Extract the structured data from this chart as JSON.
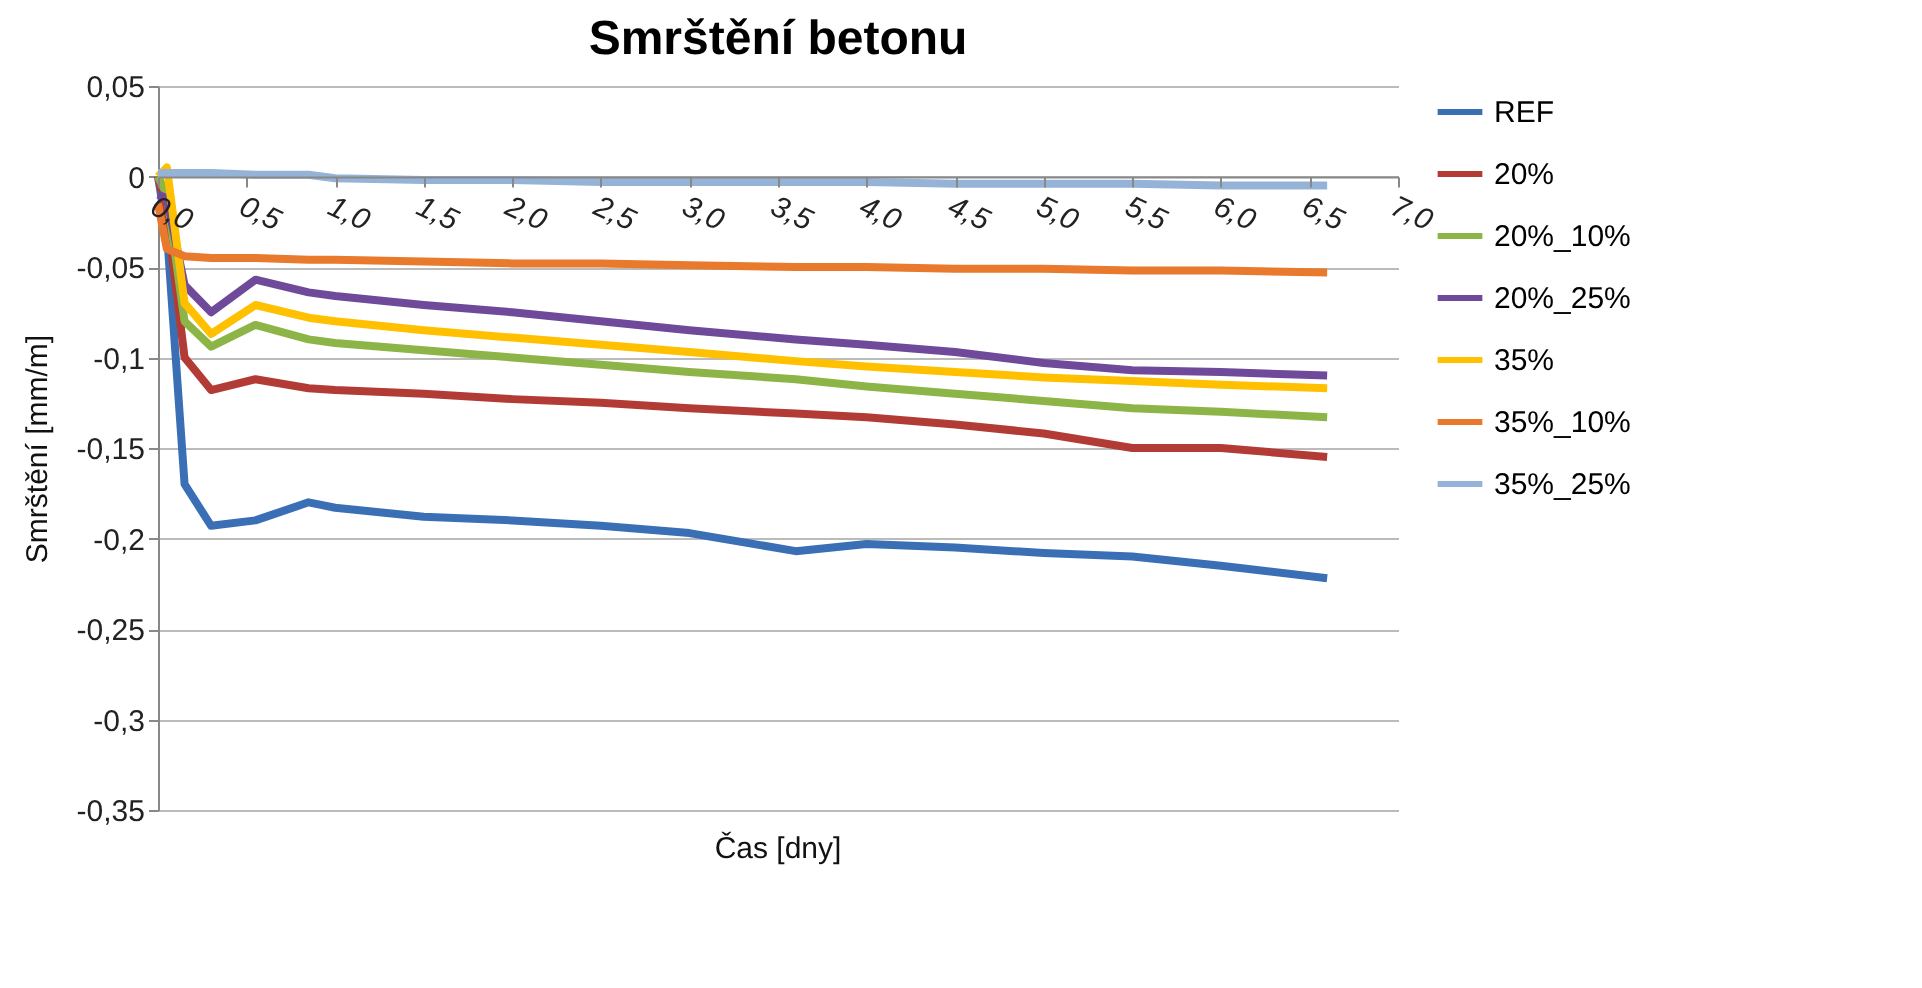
{
  "chart_data": {
    "type": "line",
    "title": "Smrštění betonu",
    "xlabel": "Čas [dny]",
    "ylabel": "Smrštění [mm/m]",
    "x": [
      0,
      0.05,
      0.15,
      0.3,
      0.55,
      0.85,
      1.0,
      1.5,
      2.0,
      2.5,
      3.0,
      3.6,
      4.0,
      4.5,
      5.0,
      5.5,
      6.0,
      6.6
    ],
    "series": [
      {
        "name": "REF",
        "color": "#3a6fb5",
        "values": [
          0,
          -0.03,
          -0.17,
          -0.193,
          -0.19,
          -0.18,
          -0.183,
          -0.188,
          -0.19,
          -0.193,
          -0.197,
          -0.207,
          -0.203,
          -0.205,
          -0.208,
          -0.21,
          -0.215,
          -0.222
        ]
      },
      {
        "name": "20%",
        "color": "#b23b36",
        "values": [
          0,
          -0.02,
          -0.1,
          -0.118,
          -0.112,
          -0.117,
          -0.118,
          -0.12,
          -0.123,
          -0.125,
          -0.128,
          -0.131,
          -0.133,
          -0.137,
          -0.142,
          -0.15,
          -0.15,
          -0.155
        ]
      },
      {
        "name": "20%_10%",
        "color": "#8db446",
        "values": [
          0,
          -0.01,
          -0.08,
          -0.094,
          -0.082,
          -0.09,
          -0.092,
          -0.096,
          -0.1,
          -0.104,
          -0.108,
          -0.112,
          -0.116,
          -0.12,
          -0.124,
          -0.128,
          -0.13,
          -0.133
        ]
      },
      {
        "name": "20%_25%",
        "color": "#6f4a9a",
        "values": [
          -0.01,
          -0.012,
          -0.06,
          -0.075,
          -0.057,
          -0.064,
          -0.066,
          -0.071,
          -0.075,
          -0.08,
          -0.085,
          -0.09,
          -0.093,
          -0.097,
          -0.103,
          -0.107,
          -0.108,
          -0.11
        ]
      },
      {
        "name": "35%",
        "color": "#ffc000",
        "values": [
          0,
          0.005,
          -0.07,
          -0.087,
          -0.071,
          -0.078,
          -0.08,
          -0.085,
          -0.089,
          -0.093,
          -0.097,
          -0.102,
          -0.105,
          -0.108,
          -0.111,
          -0.113,
          -0.115,
          -0.117
        ]
      },
      {
        "name": "35%_10%",
        "color": "#e8792d",
        "values": [
          -0.015,
          -0.04,
          -0.044,
          -0.045,
          -0.045,
          -0.046,
          -0.046,
          -0.047,
          -0.048,
          -0.048,
          -0.049,
          -0.05,
          -0.05,
          -0.051,
          -0.051,
          -0.052,
          -0.052,
          -0.053
        ]
      },
      {
        "name": "35%_25%",
        "color": "#95b3d7",
        "values": [
          0.002,
          0.002,
          0.002,
          0.002,
          0.001,
          0.001,
          -0.001,
          -0.002,
          -0.002,
          -0.003,
          -0.003,
          -0.003,
          -0.003,
          -0.004,
          -0.004,
          -0.004,
          -0.005,
          -0.005
        ]
      }
    ],
    "xlim": [
      0,
      7.0
    ],
    "xticks": [
      {
        "value": 0,
        "label": "0,0"
      },
      {
        "value": 0.5,
        "label": "0,5"
      },
      {
        "value": 1.0,
        "label": "1,0"
      },
      {
        "value": 1.5,
        "label": "1,5"
      },
      {
        "value": 2.0,
        "label": "2,0"
      },
      {
        "value": 2.5,
        "label": "2,5"
      },
      {
        "value": 3.0,
        "label": "3,0"
      },
      {
        "value": 3.5,
        "label": "3,5"
      },
      {
        "value": 4.0,
        "label": "4,0"
      },
      {
        "value": 4.5,
        "label": "4,5"
      },
      {
        "value": 5.0,
        "label": "5,0"
      },
      {
        "value": 5.5,
        "label": "5,5"
      },
      {
        "value": 6.0,
        "label": "6,0"
      },
      {
        "value": 6.5,
        "label": "6,5"
      },
      {
        "value": 7.0,
        "label": "7,0"
      }
    ],
    "ylim": [
      -0.35,
      0.05
    ],
    "yticks": [
      {
        "value": 0.05,
        "label": "0,05"
      },
      0,
      {
        "value": -0.05,
        "label": "-0,05"
      },
      {
        "value": -0.1,
        "label": "-0,1"
      },
      {
        "value": -0.15,
        "label": "-0,15"
      },
      {
        "value": -0.2,
        "label": "-0,2"
      },
      {
        "value": -0.25,
        "label": "-0,25"
      },
      {
        "value": -0.3,
        "label": "-0,3"
      },
      {
        "value": -0.35,
        "label": "-0,35"
      }
    ],
    "grid": "y",
    "legend": "right",
    "marker": "none",
    "line_style": "solid"
  }
}
